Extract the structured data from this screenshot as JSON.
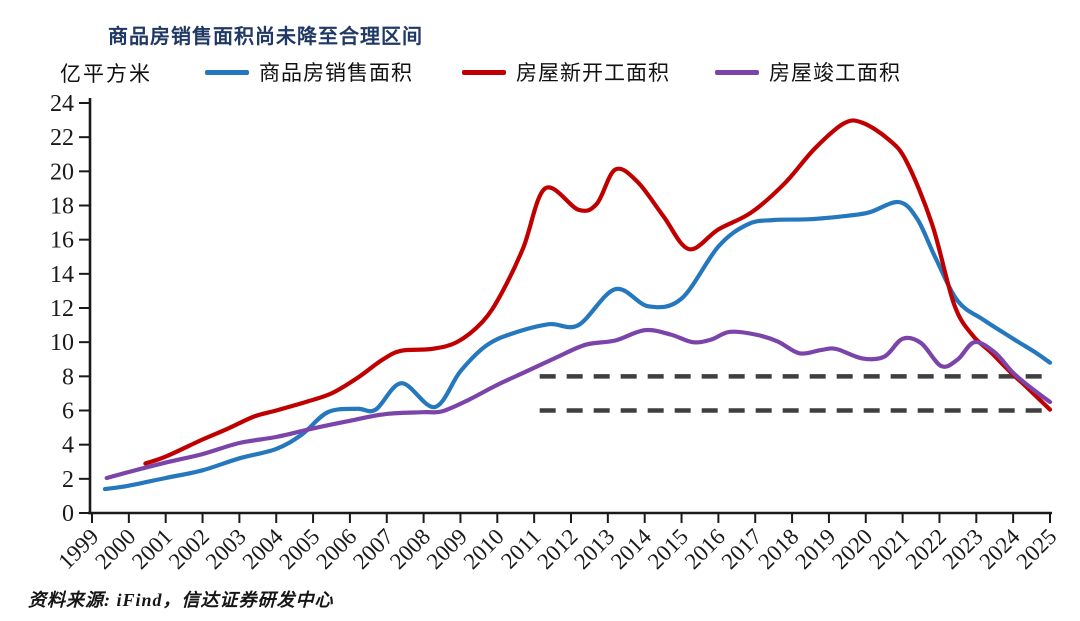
{
  "header": {
    "title": "商品房销售面积尚未降至合理区间"
  },
  "footer": {
    "source": "资料来源: iFind，信达证券研发中心"
  },
  "chart_data": {
    "type": "line",
    "title": "商品房销售面积尚未降至合理区间",
    "unit_label": "亿平方米",
    "xlabel": "",
    "ylabel": "亿平方米",
    "grid": false,
    "legend_position": "top",
    "x_range": [
      1999,
      2025
    ],
    "ylim": [
      0,
      24
    ],
    "y_ticks": [
      0,
      2,
      4,
      6,
      8,
      10,
      12,
      14,
      16,
      18,
      20,
      22,
      24
    ],
    "x_ticks": [
      "1999",
      "2000",
      "2001",
      "2002",
      "2003",
      "2004",
      "2005",
      "2006",
      "2007",
      "2008",
      "2009",
      "2010",
      "2011",
      "2012",
      "2013",
      "2014",
      "2015",
      "2016",
      "2017",
      "2018",
      "2019",
      "2020",
      "2021",
      "2022",
      "2023",
      "2024",
      "2025"
    ],
    "axis_color": "#1a1a1a",
    "series": [
      {
        "name": "商品房销售面积",
        "color": "#2577BE",
        "points": [
          [
            1999.35,
            1.4
          ],
          [
            2000,
            1.6
          ],
          [
            2001,
            2.05
          ],
          [
            2002,
            2.5
          ],
          [
            2003,
            3.2
          ],
          [
            2004,
            3.75
          ],
          [
            2004.7,
            4.6
          ],
          [
            2005.4,
            5.9
          ],
          [
            2006.2,
            6.1
          ],
          [
            2006.7,
            6.05
          ],
          [
            2007.4,
            7.6
          ],
          [
            2008.3,
            6.2
          ],
          [
            2009.0,
            8.3
          ],
          [
            2009.7,
            9.8
          ],
          [
            2010.4,
            10.5
          ],
          [
            2011.4,
            11.05
          ],
          [
            2012.2,
            11.0
          ],
          [
            2013.2,
            13.1
          ],
          [
            2014.1,
            12.1
          ],
          [
            2015.0,
            12.55
          ],
          [
            2016.0,
            15.6
          ],
          [
            2016.8,
            16.9
          ],
          [
            2017.5,
            17.15
          ],
          [
            2018.5,
            17.2
          ],
          [
            2019.5,
            17.4
          ],
          [
            2020.1,
            17.6
          ],
          [
            2020.9,
            18.2
          ],
          [
            2021.4,
            17.2
          ],
          [
            2021.9,
            14.9
          ],
          [
            2022.5,
            12.4
          ],
          [
            2023.2,
            11.3
          ],
          [
            2024.0,
            10.2
          ],
          [
            2024.6,
            9.4
          ],
          [
            2025.0,
            8.8
          ]
        ]
      },
      {
        "name": "房屋新开工面积",
        "color": "#C00000",
        "points": [
          [
            2000.45,
            2.9
          ],
          [
            2001,
            3.3
          ],
          [
            2002,
            4.3
          ],
          [
            2002.7,
            4.95
          ],
          [
            2003.4,
            5.65
          ],
          [
            2004,
            6.0
          ],
          [
            2004.8,
            6.5
          ],
          [
            2005.5,
            7.0
          ],
          [
            2006.2,
            7.9
          ],
          [
            2006.9,
            9.0
          ],
          [
            2007.4,
            9.5
          ],
          [
            2008.2,
            9.6
          ],
          [
            2008.9,
            10.0
          ],
          [
            2009.6,
            11.2
          ],
          [
            2010.1,
            12.8
          ],
          [
            2010.7,
            15.5
          ],
          [
            2011.3,
            19.0
          ],
          [
            2012.2,
            17.75
          ],
          [
            2012.7,
            18.1
          ],
          [
            2013.2,
            20.1
          ],
          [
            2013.8,
            19.4
          ],
          [
            2014.5,
            17.4
          ],
          [
            2015.2,
            15.45
          ],
          [
            2016.0,
            16.6
          ],
          [
            2016.9,
            17.6
          ],
          [
            2017.8,
            19.3
          ],
          [
            2018.6,
            21.3
          ],
          [
            2019.4,
            22.8
          ],
          [
            2019.9,
            22.85
          ],
          [
            2020.6,
            21.9
          ],
          [
            2021.1,
            20.6
          ],
          [
            2021.8,
            16.9
          ],
          [
            2022.4,
            12.2
          ],
          [
            2022.9,
            10.4
          ],
          [
            2023.4,
            9.4
          ],
          [
            2023.9,
            8.3
          ],
          [
            2024.4,
            7.3
          ],
          [
            2025.0,
            6.05
          ]
        ]
      },
      {
        "name": "房屋竣工面积",
        "color": "#7A44A8",
        "points": [
          [
            1999.4,
            2.05
          ],
          [
            2000,
            2.4
          ],
          [
            2001,
            2.95
          ],
          [
            2002,
            3.45
          ],
          [
            2003,
            4.1
          ],
          [
            2004,
            4.45
          ],
          [
            2005,
            4.95
          ],
          [
            2006,
            5.4
          ],
          [
            2007,
            5.8
          ],
          [
            2008,
            5.9
          ],
          [
            2008.5,
            5.95
          ],
          [
            2009.2,
            6.6
          ],
          [
            2010.0,
            7.5
          ],
          [
            2010.8,
            8.3
          ],
          [
            2011.6,
            9.1
          ],
          [
            2012.4,
            9.85
          ],
          [
            2013.2,
            10.1
          ],
          [
            2014.0,
            10.7
          ],
          [
            2014.7,
            10.45
          ],
          [
            2015.3,
            10.0
          ],
          [
            2015.8,
            10.15
          ],
          [
            2016.3,
            10.6
          ],
          [
            2017.0,
            10.45
          ],
          [
            2017.6,
            10.05
          ],
          [
            2018.2,
            9.35
          ],
          [
            2018.8,
            9.55
          ],
          [
            2019.2,
            9.6
          ],
          [
            2019.9,
            9.05
          ],
          [
            2020.5,
            9.15
          ],
          [
            2021.0,
            10.2
          ],
          [
            2021.5,
            9.95
          ],
          [
            2022.05,
            8.6
          ],
          [
            2022.5,
            9.0
          ],
          [
            2022.95,
            10.0
          ],
          [
            2023.5,
            9.4
          ],
          [
            2024.0,
            8.2
          ],
          [
            2024.5,
            7.3
          ],
          [
            2025.0,
            6.5
          ]
        ]
      }
    ],
    "reference_lines": [
      {
        "value": 8,
        "x_start": 2011.15,
        "x_end": 2024.95,
        "style": "dashed",
        "color": "#3f3f3f"
      },
      {
        "value": 6,
        "x_start": 2011.15,
        "x_end": 2024.95,
        "style": "dashed",
        "color": "#3f3f3f"
      }
    ]
  }
}
